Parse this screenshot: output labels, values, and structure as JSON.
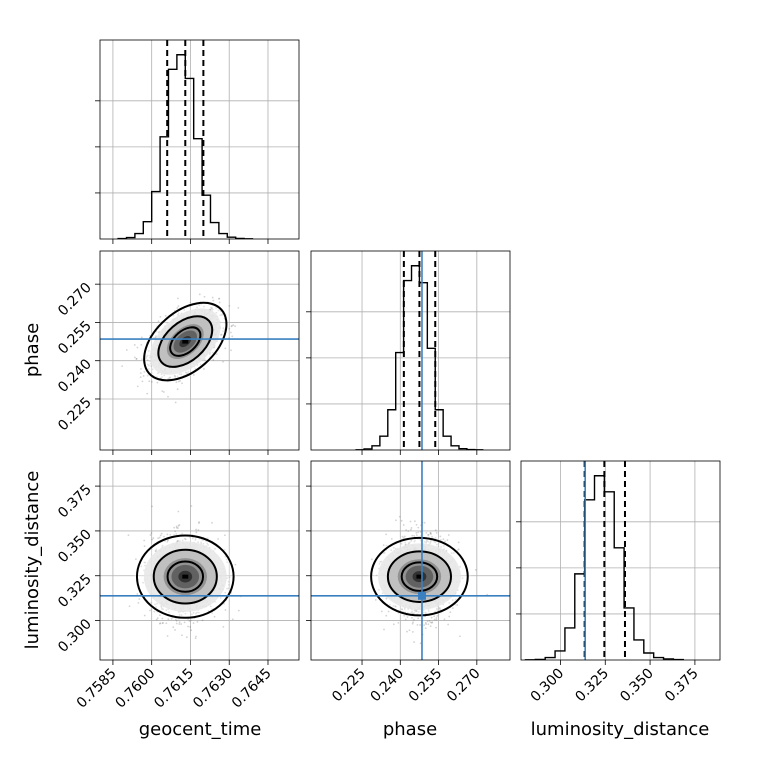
{
  "chart_data": {
    "type": "corner",
    "parameters": [
      {
        "key": "geocent_time",
        "label": "geocent_time",
        "range": [
          0.758,
          0.7657
        ],
        "ticks": [
          0.7585,
          0.76,
          0.7615,
          0.763,
          0.7645
        ],
        "tick_labels": [
          "0.7585",
          "0.7600",
          "0.7615",
          "0.7630",
          "0.7645"
        ],
        "quantiles": [
          0.7606,
          0.7613,
          0.762
        ],
        "truth": null,
        "mean": 0.7613,
        "sd": 0.00065,
        "hist_counts": [
          2,
          8,
          30,
          95,
          260,
          560,
          930,
          1010,
          880,
          550,
          240,
          90,
          30,
          10,
          3,
          1
        ]
      },
      {
        "key": "phase",
        "label": "phase",
        "range": [
          0.205,
          0.283
        ],
        "ticks": [
          0.225,
          0.24,
          0.255,
          0.27
        ],
        "tick_labels": [
          "0.225",
          "0.240",
          "0.255",
          "0.270"
        ],
        "quantiles": [
          0.2414,
          0.2475,
          0.2537
        ],
        "truth": 0.2485,
        "mean": 0.2475,
        "sd": 0.0062,
        "hist_counts": [
          1,
          5,
          20,
          65,
          190,
          460,
          800,
          870,
          790,
          480,
          190,
          65,
          20,
          6,
          2,
          1
        ]
      },
      {
        "key": "luminosity_distance",
        "label": "luminosity_distance",
        "range": [
          0.278,
          0.389
        ],
        "ticks": [
          0.3,
          0.325,
          0.35,
          0.375
        ],
        "tick_labels": [
          "0.300",
          "0.325",
          "0.350",
          "0.375"
        ],
        "quantiles": [
          0.3135,
          0.3245,
          0.336
        ],
        "truth": 0.3138,
        "mean": 0.3245,
        "sd": 0.011,
        "hist_counts": [
          1,
          3,
          12,
          45,
          160,
          430,
          800,
          920,
          840,
          560,
          260,
          100,
          35,
          12,
          5,
          2
        ]
      }
    ],
    "correlations": {
      "geocent_time|phase": 0.45,
      "geocent_time|luminosity_distance": 0.0,
      "phase|luminosity_distance": 0.0
    },
    "contour_levels": [
      0.39,
      0.86,
      1.0
    ],
    "quantile_levels": [
      0.16,
      0.5,
      0.84
    ],
    "samples_note": "scatter of posterior samples with filled density + contours",
    "colors": {
      "hist": "#000000",
      "truth": "#3a80c0",
      "scatter": "#555555",
      "density_scale": [
        "#ffffff",
        "#e6e6e6",
        "#b9b9b9",
        "#8a8a8a",
        "#585858",
        "#2a2a2a"
      ]
    }
  }
}
